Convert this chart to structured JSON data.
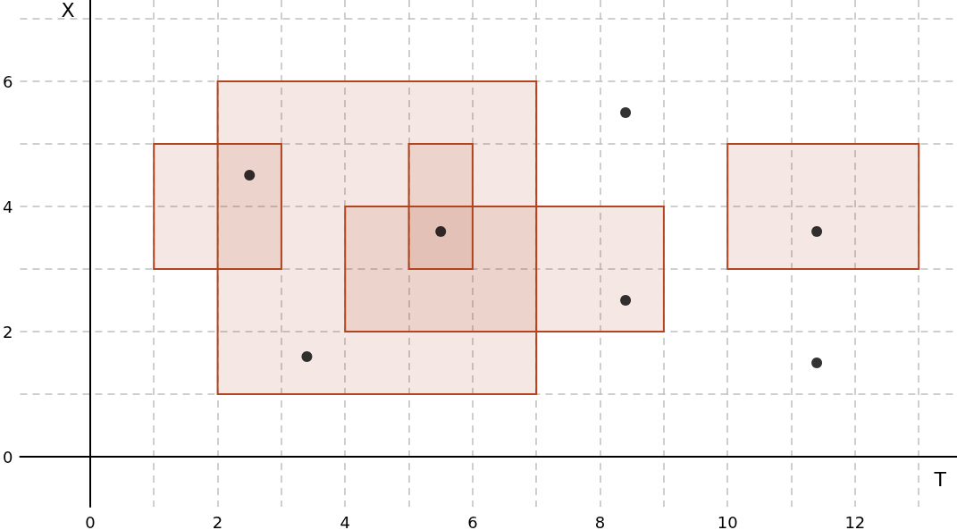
{
  "chart_data": {
    "type": "scatter",
    "xlabel": "T",
    "ylabel": "X",
    "xlim": [
      -1.1,
      13.6
    ],
    "ylim": [
      -0.8,
      7.3
    ],
    "xticks": [
      0,
      {
        "value": 1,
        "label": null
      },
      2,
      {
        "value": 3,
        "label": null
      },
      4,
      {
        "value": 5,
        "label": null
      },
      6,
      {
        "value": 7,
        "label": null
      },
      8,
      {
        "value": 9,
        "label": null
      },
      10,
      {
        "value": 11,
        "label": null
      },
      12,
      {
        "value": 13,
        "label": null
      }
    ],
    "yticks": [
      0,
      {
        "value": 1,
        "label": null
      },
      2,
      {
        "value": 3,
        "label": null
      },
      4,
      {
        "value": 5,
        "label": null
      },
      6,
      {
        "value": 7,
        "label": null
      }
    ],
    "grid": true,
    "series": [
      {
        "type": "area",
        "marker": "none",
        "color": "#b0451f",
        "x": [
          1,
          1,
          3,
          3
        ],
        "values": [
          3,
          5,
          5,
          3
        ]
      },
      {
        "type": "area",
        "marker": "none",
        "color": "#b0451f",
        "x": [
          2,
          2,
          7,
          7
        ],
        "values": [
          1,
          6,
          6,
          1
        ]
      },
      {
        "type": "area",
        "marker": "none",
        "color": "#b0451f",
        "x": [
          5,
          5,
          6,
          6
        ],
        "values": [
          3,
          5,
          5,
          3
        ]
      },
      {
        "type": "area",
        "marker": "none",
        "color": "#b0451f",
        "x": [
          4,
          4,
          9,
          9
        ],
        "values": [
          2,
          4,
          4,
          2
        ]
      },
      {
        "type": "area",
        "marker": "none",
        "color": "#b0451f",
        "x": [
          10,
          10,
          13,
          13
        ],
        "values": [
          3,
          5,
          5,
          3
        ]
      },
      {
        "marker": "circle",
        "color": "#000000",
        "x": [
          2.5,
          3.4,
          5.5,
          8.4,
          8.4,
          11.4,
          11.4
        ],
        "values": [
          4.5,
          1.6,
          3.6,
          5.5,
          2.5,
          3.6,
          1.5
        ]
      }
    ]
  }
}
